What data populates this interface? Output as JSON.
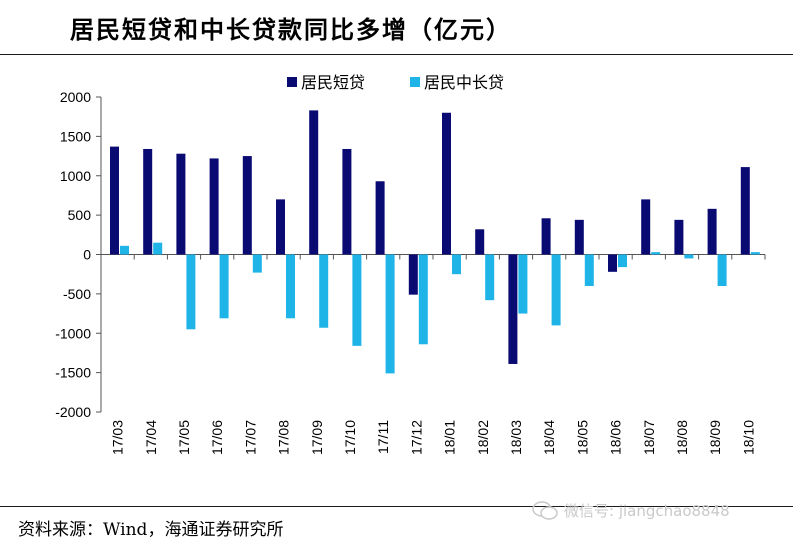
{
  "header": {
    "title": "居民短贷和中长贷款同比多增（亿元）"
  },
  "footer": {
    "source": "资料来源：Wind，海通证券研究所",
    "watermark": "微信号: jiangchao8848"
  },
  "colors": {
    "short": "#0a0a73",
    "long": "#1fb4e8"
  },
  "chart_data": {
    "type": "bar",
    "categories": [
      "17/03",
      "17/04",
      "17/05",
      "17/06",
      "17/07",
      "17/08",
      "17/09",
      "17/10",
      "17/11",
      "17/12",
      "18/01",
      "18/02",
      "18/03",
      "18/04",
      "18/05",
      "18/06",
      "18/07",
      "18/08",
      "18/09",
      "18/10"
    ],
    "series": [
      {
        "name": "居民短贷",
        "values": [
          1370,
          1340,
          1280,
          1220,
          1250,
          700,
          1830,
          1340,
          930,
          -510,
          1800,
          320,
          -1390,
          460,
          440,
          -220,
          700,
          440,
          580,
          1110
        ]
      },
      {
        "name": "居民中长贷",
        "values": [
          110,
          150,
          -950,
          -810,
          -230,
          -810,
          -930,
          -1160,
          -1510,
          -1140,
          -250,
          -580,
          -750,
          -900,
          -400,
          -160,
          30,
          -50,
          -400,
          30
        ]
      }
    ],
    "yticks": [
      "2000",
      "1500",
      "1000",
      "500",
      "0",
      "-500",
      "-1000",
      "-1500",
      "-2000"
    ],
    "ylim": [
      -2000,
      2000
    ],
    "legend": "top-center",
    "title": "居民短贷和中长贷款同比多增（亿元）"
  }
}
